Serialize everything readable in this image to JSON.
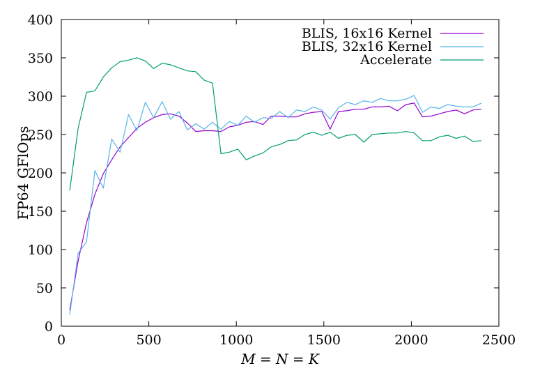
{
  "chart_data": {
    "type": "line",
    "xlabel": "M = N = K",
    "ylabel": "FP64 GFlOps",
    "xlim": [
      0,
      2500
    ],
    "ylim": [
      0,
      400
    ],
    "xticks": [
      0,
      500,
      1000,
      1500,
      2000,
      2500
    ],
    "yticks": [
      0,
      50,
      100,
      150,
      200,
      250,
      300,
      350,
      400
    ],
    "grid": false,
    "legend_position": "top-right",
    "series": [
      {
        "name": "BLIS, 16x16 Kernel",
        "color": "#9400d3",
        "x": [
          48,
          96,
          144,
          192,
          240,
          288,
          336,
          384,
          432,
          480,
          528,
          576,
          624,
          672,
          720,
          768,
          816,
          864,
          912,
          960,
          1008,
          1056,
          1104,
          1152,
          1200,
          1248,
          1296,
          1344,
          1392,
          1440,
          1488,
          1536,
          1584,
          1632,
          1680,
          1728,
          1776,
          1824,
          1872,
          1920,
          1968,
          2016,
          2064,
          2112,
          2160,
          2208,
          2256,
          2304,
          2352,
          2400
        ],
        "values": [
          21,
          85,
          135,
          172,
          199,
          217,
          234,
          246,
          258,
          266,
          272,
          276,
          277,
          274,
          265,
          254,
          255,
          255,
          254,
          260,
          262,
          266,
          267,
          263,
          274,
          274,
          273,
          273,
          277,
          279,
          280,
          257,
          280,
          281,
          283,
          283,
          286,
          286,
          287,
          281,
          289,
          291,
          273,
          274,
          277,
          280,
          282,
          277,
          282,
          283
        ]
      },
      {
        "name": "BLIS, 32x16 Kernel",
        "color": "#56b4e9",
        "x": [
          48,
          96,
          144,
          192,
          240,
          288,
          336,
          384,
          432,
          480,
          528,
          576,
          624,
          672,
          720,
          768,
          816,
          864,
          912,
          960,
          1008,
          1056,
          1104,
          1152,
          1200,
          1248,
          1296,
          1344,
          1392,
          1440,
          1488,
          1536,
          1584,
          1632,
          1680,
          1728,
          1776,
          1824,
          1872,
          1920,
          1968,
          2016,
          2064,
          2112,
          2160,
          2208,
          2256,
          2304,
          2352,
          2400
        ],
        "values": [
          15,
          95,
          110,
          203,
          180,
          244,
          227,
          276,
          255,
          292,
          272,
          293,
          270,
          280,
          256,
          264,
          257,
          266,
          257,
          267,
          262,
          274,
          266,
          272,
          271,
          280,
          272,
          282,
          280,
          286,
          282,
          270,
          285,
          292,
          289,
          294,
          292,
          297,
          294,
          294,
          296,
          301,
          279,
          286,
          284,
          289,
          287,
          286,
          286,
          291
        ]
      },
      {
        "name": "Accelerate",
        "color": "#009e73",
        "x": [
          48,
          96,
          144,
          192,
          240,
          288,
          336,
          384,
          432,
          480,
          528,
          576,
          624,
          672,
          720,
          768,
          816,
          864,
          912,
          960,
          1008,
          1056,
          1104,
          1152,
          1200,
          1248,
          1296,
          1344,
          1392,
          1440,
          1488,
          1536,
          1584,
          1632,
          1680,
          1728,
          1776,
          1824,
          1872,
          1920,
          1968,
          2016,
          2064,
          2112,
          2160,
          2208,
          2256,
          2304,
          2352,
          2400
        ],
        "values": [
          177,
          258,
          305,
          307,
          325,
          337,
          345,
          347,
          350,
          346,
          336,
          343,
          341,
          337,
          333,
          332,
          321,
          317,
          225,
          227,
          231,
          217,
          222,
          226,
          234,
          237,
          242,
          243,
          250,
          253,
          249,
          253,
          245,
          249,
          250,
          240,
          250,
          251,
          252,
          252,
          254,
          252,
          242,
          242,
          247,
          249,
          245,
          248,
          241,
          242
        ]
      }
    ]
  }
}
